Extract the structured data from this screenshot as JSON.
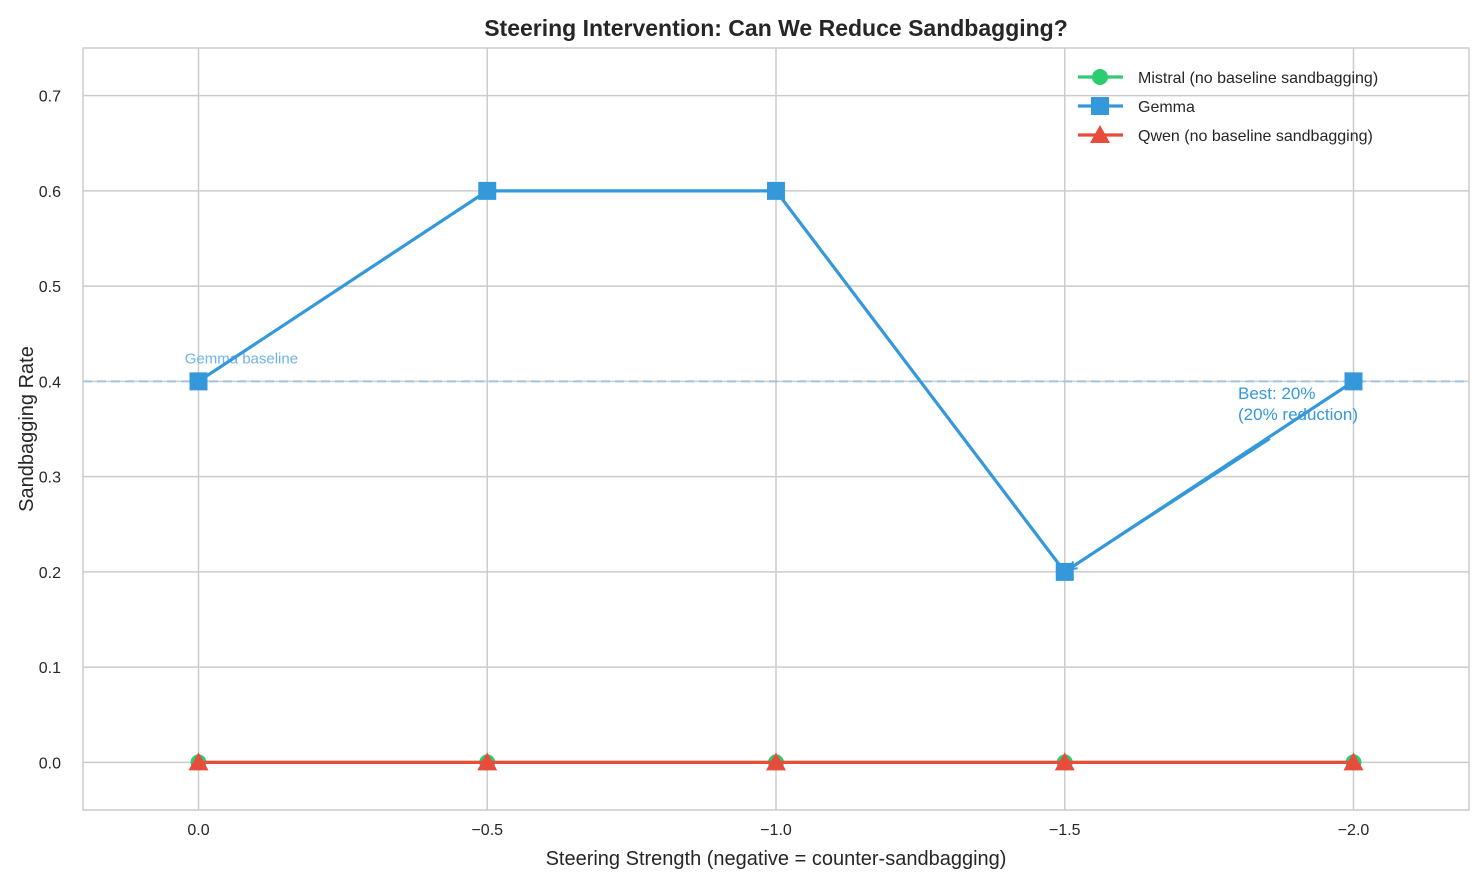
{
  "chart_data": {
    "type": "line",
    "title": "Steering Intervention: Can We Reduce Sandbagging?",
    "xlabel": "Steering Strength (negative = counter-sandbagging)",
    "ylabel": "Sandbagging Rate",
    "x": [
      0.0,
      -0.5,
      -1.0,
      -1.5,
      -2.0
    ],
    "xlim": [
      0.2,
      -2.2
    ],
    "ylim": [
      -0.05,
      0.75
    ],
    "x_reversed": true,
    "xticks": [
      0.0,
      -0.5,
      -1.0,
      -1.5,
      -2.0
    ],
    "xtick_labels": [
      "0.0",
      "−0.5",
      "−1.0",
      "−1.5",
      "−2.0"
    ],
    "yticks": [
      0.0,
      0.1,
      0.2,
      0.3,
      0.4,
      0.5,
      0.6,
      0.7
    ],
    "ytick_labels": [
      "0.0",
      "0.1",
      "0.2",
      "0.3",
      "0.4",
      "0.5",
      "0.6",
      "0.7"
    ],
    "grid": true,
    "legend_position": "top-right",
    "series": [
      {
        "name": "Mistral (no baseline sandbagging)",
        "values": [
          0,
          0,
          0,
          0,
          0
        ],
        "color": "#2ecc71",
        "marker": "circle"
      },
      {
        "name": "Gemma",
        "values": [
          0.4,
          0.6,
          0.6,
          0.2,
          0.4
        ],
        "color": "#3498db",
        "marker": "square"
      },
      {
        "name": "Qwen (no baseline sandbagging)",
        "values": [
          0,
          0,
          0,
          0,
          0
        ],
        "color": "#e74c3c",
        "marker": "triangle"
      }
    ],
    "reference_line": {
      "y": 0.4,
      "label": "Gemma baseline",
      "color": "#9fc3e0",
      "style": "dashed"
    },
    "annotations": [
      {
        "text_lines": [
          "Best: 20%",
          "(20% reduction)"
        ],
        "text_x": -1.8,
        "text_y": 0.35,
        "point_x": -1.5,
        "point_y": 0.2,
        "color": "#3498db"
      }
    ]
  }
}
